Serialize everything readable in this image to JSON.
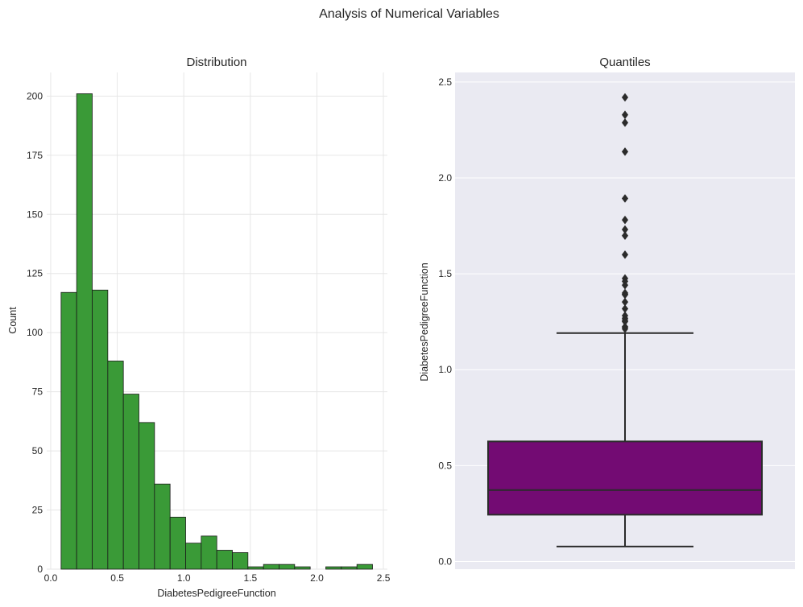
{
  "figure": {
    "suptitle": "Analysis of Numerical Variables"
  },
  "colors": {
    "panel_bg_left": "#ffffff",
    "panel_bg_right": "#eaeaf2",
    "grid_left": "#e6e6e6",
    "grid_right": "#ffffff",
    "hist_fill": "#3a9a37",
    "box_fill": "#730b73",
    "edge": "#2b2b2b"
  },
  "chart_data": [
    {
      "type": "bar",
      "title": "Distribution",
      "xlabel": "DiabetesPedigreeFunction",
      "ylabel": "Count",
      "xlim": [
        -0.03,
        2.53
      ],
      "ylim": [
        0,
        210
      ],
      "xticks": [
        0.0,
        0.5,
        1.0,
        1.5,
        2.0,
        2.5
      ],
      "xtick_labels": [
        "0.0",
        "0.5",
        "1.0",
        "1.5",
        "2.0",
        "2.5"
      ],
      "yticks": [
        0,
        25,
        50,
        75,
        100,
        125,
        150,
        175,
        200
      ],
      "ytick_labels": [
        "0",
        "25",
        "50",
        "75",
        "100",
        "125",
        "150",
        "175",
        "200"
      ],
      "grid": true,
      "bin_edges": [
        0.078,
        0.195,
        0.312,
        0.429,
        0.546,
        0.663,
        0.78,
        0.897,
        1.014,
        1.131,
        1.248,
        1.365,
        1.482,
        1.599,
        1.716,
        1.833,
        1.95,
        2.067,
        2.184,
        2.301,
        2.418
      ],
      "counts": [
        117,
        201,
        118,
        88,
        74,
        62,
        36,
        22,
        11,
        14,
        8,
        7,
        1,
        2,
        2,
        1,
        0,
        1,
        1,
        2
      ]
    },
    {
      "type": "box",
      "title": "Quantiles",
      "xlabel": "",
      "ylabel": "DiabetesPedigreeFunction",
      "ylim": [
        -0.04,
        2.55
      ],
      "yticks": [
        0.0,
        0.5,
        1.0,
        1.5,
        2.0,
        2.5
      ],
      "ytick_labels": [
        "0.0",
        "0.5",
        "1.0",
        "1.5",
        "2.0",
        "2.5"
      ],
      "grid": true,
      "whisker_low": 0.078,
      "q1": 0.244,
      "median": 0.3725,
      "q3": 0.626,
      "whisker_high": 1.191,
      "outliers": [
        2.42,
        2.329,
        2.288,
        2.137,
        1.893,
        1.781,
        1.731,
        1.699,
        1.6,
        1.476,
        1.461,
        1.441,
        1.4,
        1.394,
        1.391,
        1.353,
        1.318,
        1.282,
        1.268,
        1.258,
        1.251,
        1.224,
        1.222,
        1.213
      ]
    }
  ]
}
